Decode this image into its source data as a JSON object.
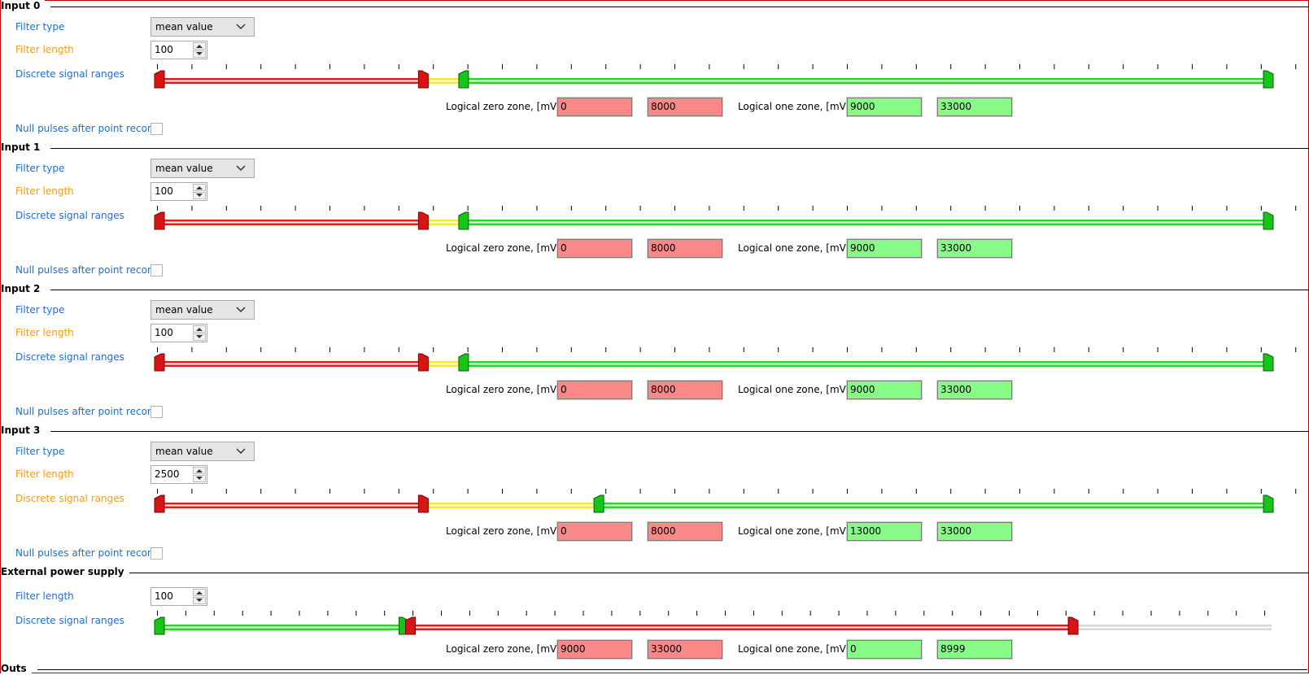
{
  "groups": [
    {
      "title": "Input 0",
      "filter_type_label": "Filter type",
      "filter_type_value": "mean value",
      "filter_length_label": "Filter length",
      "filter_length_value": "100",
      "ranges_label": "Discrete signal ranges",
      "ranges_label_color": "blue",
      "zero_zone_label": "Logical zero zone, [mV]",
      "zero_min": "0",
      "zero_max": "8000",
      "one_zone_label": "Logical one zone, [mV]",
      "one_min": "9000",
      "one_max": "33000",
      "null_pulses_label": "Null pulses after point record",
      "null_pulses_checked": false,
      "slider_scale_max": 33000,
      "slider_segments": [
        {
          "from": 0,
          "to": 8000,
          "color": "red"
        },
        {
          "from": 8000,
          "to": 9000,
          "color": "yellow"
        },
        {
          "from": 9000,
          "to": 33000,
          "color": "green"
        }
      ],
      "slider_handles": [
        {
          "value": 0,
          "color": "red"
        },
        {
          "value": 8000,
          "color": "red"
        },
        {
          "value": 9000,
          "color": "green"
        },
        {
          "value": 33000,
          "color": "green"
        }
      ]
    },
    {
      "title": "Input 1",
      "filter_type_label": "Filter type",
      "filter_type_value": "mean value",
      "filter_length_label": "Filter length",
      "filter_length_value": "100",
      "ranges_label": "Discrete signal ranges",
      "ranges_label_color": "blue",
      "zero_zone_label": "Logical zero zone, [mV]",
      "zero_min": "0",
      "zero_max": "8000",
      "one_zone_label": "Logical one zone, [mV]",
      "one_min": "9000",
      "one_max": "33000",
      "null_pulses_label": "Null pulses after point record",
      "null_pulses_checked": false,
      "slider_scale_max": 33000,
      "slider_segments": [
        {
          "from": 0,
          "to": 8000,
          "color": "red"
        },
        {
          "from": 8000,
          "to": 9000,
          "color": "yellow"
        },
        {
          "from": 9000,
          "to": 33000,
          "color": "green"
        }
      ],
      "slider_handles": [
        {
          "value": 0,
          "color": "red"
        },
        {
          "value": 8000,
          "color": "red"
        },
        {
          "value": 9000,
          "color": "green"
        },
        {
          "value": 33000,
          "color": "green"
        }
      ]
    },
    {
      "title": "Input 2",
      "filter_type_label": "Filter type",
      "filter_type_value": "mean value",
      "filter_length_label": "Filter length",
      "filter_length_value": "100",
      "ranges_label": "Discrete signal ranges",
      "ranges_label_color": "blue",
      "zero_zone_label": "Logical zero zone, [mV]",
      "zero_min": "0",
      "zero_max": "8000",
      "one_zone_label": "Logical one zone, [mV]",
      "one_min": "9000",
      "one_max": "33000",
      "null_pulses_label": "Null pulses after point record",
      "null_pulses_checked": false,
      "slider_scale_max": 33000,
      "slider_segments": [
        {
          "from": 0,
          "to": 8000,
          "color": "red"
        },
        {
          "from": 8000,
          "to": 9000,
          "color": "yellow"
        },
        {
          "from": 9000,
          "to": 33000,
          "color": "green"
        }
      ],
      "slider_handles": [
        {
          "value": 0,
          "color": "red"
        },
        {
          "value": 8000,
          "color": "red"
        },
        {
          "value": 9000,
          "color": "green"
        },
        {
          "value": 33000,
          "color": "green"
        }
      ]
    },
    {
      "title": "Input 3",
      "filter_type_label": "Filter type",
      "filter_type_value": "mean value",
      "filter_length_label": "Filter length",
      "filter_length_value": "2500",
      "ranges_label": "Discrete signal ranges",
      "ranges_label_color": "orange",
      "zero_zone_label": "Logical zero zone, [mV]",
      "zero_min": "0",
      "zero_max": "8000",
      "one_zone_label": "Logical one zone, [mV]",
      "one_min": "13000",
      "one_max": "33000",
      "null_pulses_label": "Null pulses after point record",
      "null_pulses_checked": false,
      "slider_scale_max": 33000,
      "slider_segments": [
        {
          "from": 0,
          "to": 8000,
          "color": "red"
        },
        {
          "from": 8000,
          "to": 13000,
          "color": "yellow"
        },
        {
          "from": 13000,
          "to": 33000,
          "color": "green"
        }
      ],
      "slider_handles": [
        {
          "value": 0,
          "color": "red"
        },
        {
          "value": 8000,
          "color": "red"
        },
        {
          "value": 13000,
          "color": "green"
        },
        {
          "value": 33000,
          "color": "green"
        }
      ]
    }
  ],
  "power": {
    "title": "External power supply",
    "filter_length_label": "Filter length",
    "filter_length_value": "100",
    "ranges_label": "Discrete signal ranges",
    "zero_zone_label": "Logical zero zone, [mV]",
    "zero_min": "9000",
    "zero_max": "33000",
    "one_zone_label": "Logical one zone, [mV]",
    "one_min": "0",
    "one_max": "8999",
    "slider_scale_max": 40000,
    "slider_segments": [
      {
        "from": 0,
        "to": 9000,
        "color": "green"
      },
      {
        "from": 9000,
        "to": 33000,
        "color": "red"
      },
      {
        "from": 33000,
        "to": 40000,
        "color": "gray"
      }
    ],
    "slider_handles": [
      {
        "value": 0,
        "color": "green"
      },
      {
        "value": 8999,
        "color": "green"
      },
      {
        "value": 9000,
        "color": "red"
      },
      {
        "value": 33000,
        "color": "red"
      }
    ]
  },
  "outs": {
    "title": "Outs"
  },
  "colors": {
    "label_blue": "#1e6fc8",
    "label_orange": "#f39a1c",
    "zone_red": "#f98888",
    "zone_green": "#87fa87",
    "bar_red": "#e21b1b",
    "bar_yellow": "#f7e733",
    "bar_green": "#23d923",
    "bar_gray": "#d6d6d6"
  }
}
